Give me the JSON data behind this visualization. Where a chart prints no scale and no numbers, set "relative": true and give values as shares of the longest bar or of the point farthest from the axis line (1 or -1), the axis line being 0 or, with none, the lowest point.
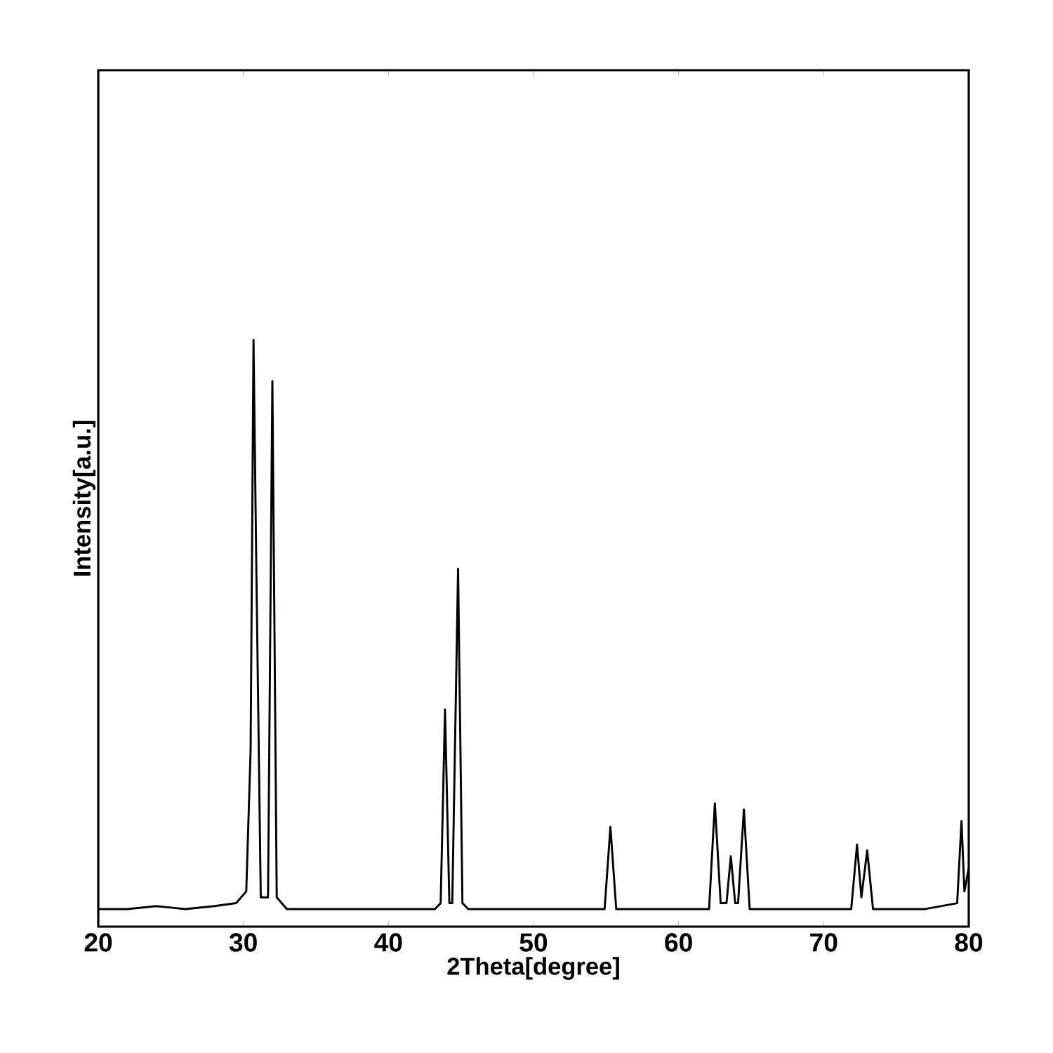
{
  "chart_data": {
    "type": "line",
    "xlabel": "2Theta[degree]",
    "ylabel": "Intensity[a.u.]",
    "relative": true,
    "xlim": [
      20,
      80
    ],
    "xticks": [
      20,
      30,
      40,
      50,
      60,
      70,
      80
    ],
    "marker": "none",
    "line_style": "solid",
    "series": [
      {
        "color": "#000000",
        "x": [
          20,
          22,
          24,
          26,
          28,
          29.5,
          30.2,
          30.5,
          30.7,
          30.9,
          31.2,
          31.7,
          32.0,
          32.3,
          33,
          36,
          40,
          43.2,
          43.6,
          43.9,
          44.2,
          44.4,
          44.8,
          45.1,
          45.5,
          50,
          54.9,
          55.3,
          55.7,
          59,
          62.1,
          62.5,
          62.9,
          63.3,
          63.6,
          63.9,
          64.1,
          64.5,
          64.9,
          68,
          71.9,
          72.3,
          72.6,
          73.0,
          73.4,
          77,
          79.2,
          79.5,
          79.7,
          80
        ],
        "values": [
          0.03,
          0.03,
          0.035,
          0.03,
          0.035,
          0.04,
          0.06,
          0.3,
          1.0,
          0.6,
          0.05,
          0.05,
          0.93,
          0.05,
          0.03,
          0.03,
          0.03,
          0.03,
          0.04,
          0.37,
          0.04,
          0.04,
          0.61,
          0.04,
          0.03,
          0.03,
          0.03,
          0.17,
          0.03,
          0.03,
          0.03,
          0.21,
          0.04,
          0.04,
          0.12,
          0.04,
          0.04,
          0.2,
          0.03,
          0.03,
          0.03,
          0.14,
          0.05,
          0.13,
          0.03,
          0.03,
          0.04,
          0.18,
          0.06,
          0.1
        ]
      }
    ]
  }
}
